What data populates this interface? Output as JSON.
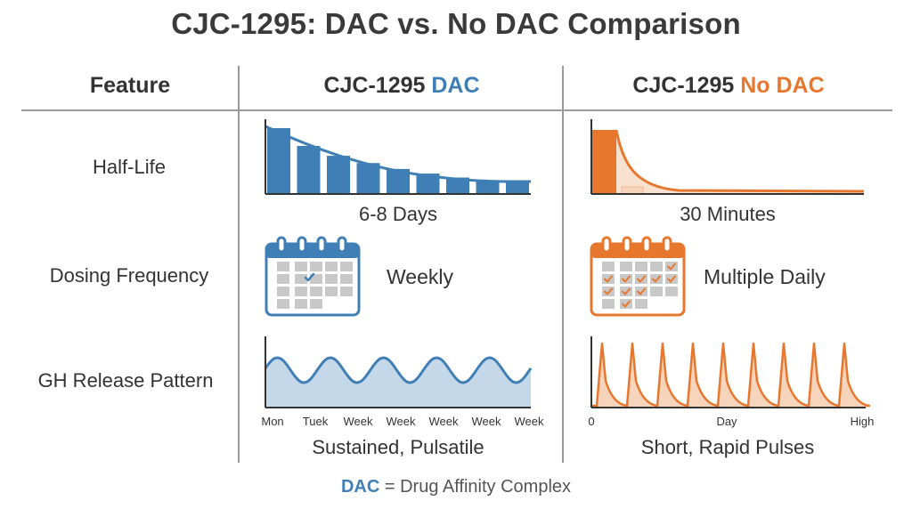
{
  "title": "CJC-1295: DAC vs. No DAC Comparison",
  "header": {
    "feature": "Feature",
    "dac_prefix": "CJC-1295",
    "dac_suffix": "DAC",
    "nodac_prefix": "CJC-1295",
    "nodac_suffix": "No DAC"
  },
  "rows": {
    "half_life": "Half-Life",
    "dosing": "Dosing Frequency",
    "gh": "GH Release Pattern"
  },
  "dac": {
    "half_life_caption": "6-8 Days",
    "dosing_label": "Weekly",
    "gh_caption": "Sustained, Pulsatile",
    "gh_ticks": [
      "Mon",
      "Tuek",
      "Week",
      "Week",
      "Week",
      "Week",
      "Week"
    ],
    "half_life_bars": [
      1.0,
      0.73,
      0.58,
      0.47,
      0.38,
      0.31,
      0.25,
      0.21,
      0.18
    ]
  },
  "nodac": {
    "half_life_caption": "30 Minutes",
    "dosing_label": "Multiple Daily",
    "gh_caption": "Short, Rapid Pulses",
    "gh_ticks": [
      "0",
      "Day",
      "High"
    ]
  },
  "footer": {
    "acronym": "DAC",
    "definition": "= Drug Affinity Complex"
  },
  "colors": {
    "dac": "#3f7fb5",
    "dac_fill": "#c5d8ea",
    "nodac": "#e8772e",
    "nodac_fill": "#f7d4bc",
    "grid_cell": "#c8c8c8"
  }
}
